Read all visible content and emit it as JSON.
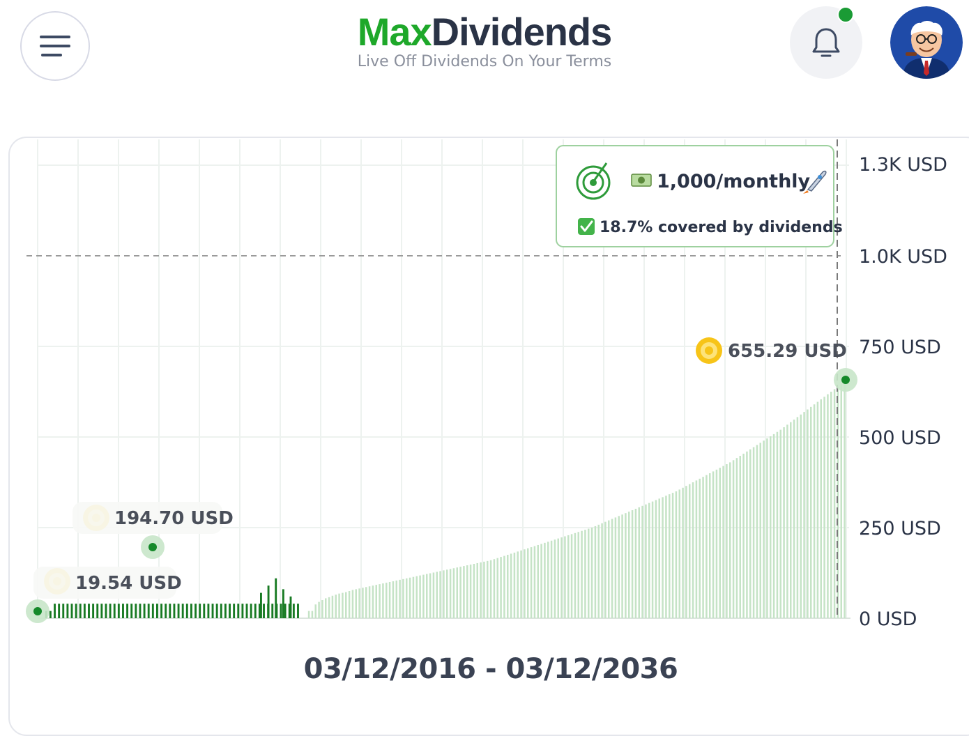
{
  "header": {
    "menu_icon": "hamburger-menu-icon",
    "brand_part1": "Max",
    "brand_part2": "Dividends",
    "tagline": "Live Off Dividends On Your Terms",
    "notification_icon": "bell-icon",
    "avatar_icon": "user-avatar"
  },
  "goal": {
    "icon": "target-icon",
    "amount_text": "1,000/monthly",
    "coverage_text": "18.7% covered by dividends"
  },
  "date_range": "03/12/2016 - 03/12/2036",
  "colors": {
    "brand_green": "#1ea82a",
    "dark_bar": "#187a23",
    "light_bar": "#c5e3c6",
    "coin_gold": "#f7c418"
  },
  "chart_data": {
    "type": "bar",
    "x_range": [
      "03/12/2016",
      "03/12/2036"
    ],
    "ylim": [
      0,
      1300
    ],
    "y_ticks": [
      {
        "label": "0 USD",
        "value": 0
      },
      {
        "label": "250 USD",
        "value": 250
      },
      {
        "label": "500 USD",
        "value": 500
      },
      {
        "label": "750 USD",
        "value": 750
      },
      {
        "label": "1.0K USD",
        "value": 1000
      },
      {
        "label": "1.3K USD",
        "value": 1250
      }
    ],
    "goal_line": 1000,
    "annotations": [
      {
        "label": "19.54 USD",
        "value": 19.54
      },
      {
        "label": "194.70 USD",
        "value": 194.7
      },
      {
        "label": "655.29 USD",
        "value": 655.29
      }
    ],
    "series": [
      {
        "values": [
          20,
          20,
          40,
          40,
          40,
          40,
          40,
          40,
          40,
          40,
          40,
          40,
          40,
          40,
          40,
          40,
          40,
          40,
          40,
          40,
          40,
          40,
          40,
          40,
          40,
          40,
          40,
          40,
          40,
          40,
          40,
          40,
          40,
          40,
          40,
          40,
          40,
          40,
          40,
          40,
          40,
          40,
          40,
          40,
          40,
          40,
          40,
          40,
          40,
          40,
          40,
          40,
          40,
          40,
          40,
          40,
          40,
          40,
          40,
          40
        ]
      },
      {
        "values": [
          20,
          20,
          38,
          45,
          50,
          55,
          58,
          62,
          65,
          68,
          70,
          72,
          75,
          78,
          80,
          82,
          84,
          86,
          88,
          90,
          92,
          94,
          96,
          98,
          100,
          102,
          104,
          106,
          108,
          110,
          112,
          114,
          116,
          118,
          120,
          122,
          124,
          126,
          128,
          130,
          132,
          134,
          136,
          138,
          140,
          142,
          144,
          146,
          148,
          150,
          152,
          154,
          156,
          158,
          160,
          163,
          166,
          169,
          172,
          175,
          178,
          181,
          184,
          187,
          190,
          193,
          196,
          199,
          202,
          205,
          208,
          211,
          214,
          217,
          220,
          223,
          226,
          229,
          232,
          235,
          238,
          241,
          244,
          247,
          250,
          254,
          258,
          262,
          266,
          270,
          274,
          278,
          282,
          286,
          290,
          294,
          298,
          302,
          306,
          310,
          314,
          318,
          322,
          326,
          330,
          334,
          338,
          342,
          346,
          350,
          355,
          360,
          365,
          370,
          375,
          380,
          385,
          390,
          395,
          400,
          405,
          410,
          415,
          420,
          425,
          430,
          436,
          442,
          448,
          454,
          460,
          466,
          472,
          478,
          484,
          490,
          496,
          502,
          508,
          514,
          520,
          527,
          534,
          541,
          548,
          555,
          562,
          569,
          576,
          583,
          590,
          597,
          604,
          611,
          618,
          625,
          632,
          639,
          646,
          655
        ]
      }
    ]
  }
}
